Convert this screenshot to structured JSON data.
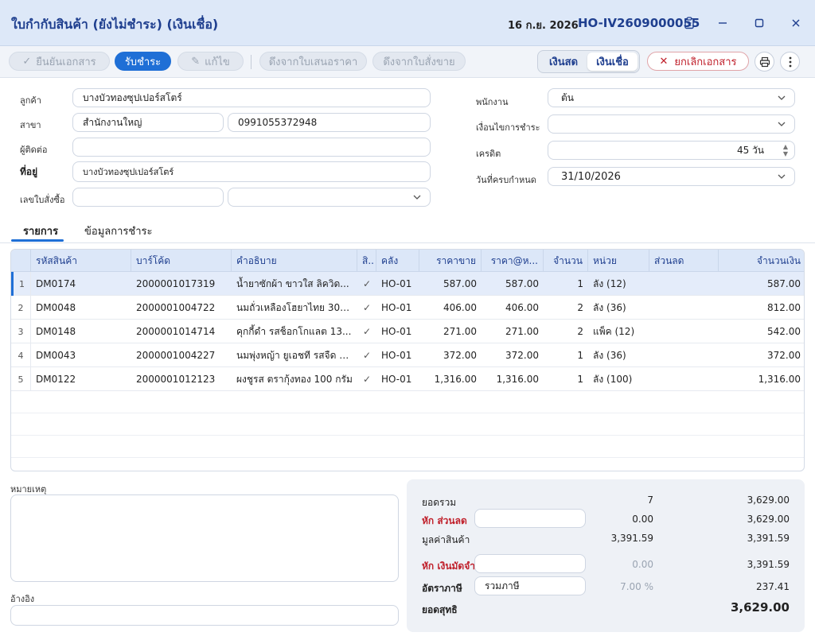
{
  "title": "ใบกำกับสินค้า (ยังไม่ชำระ) (เงินเชื่อ)",
  "date": "16 ก.ย. 2026",
  "doc_no": "HO-IV2609000055",
  "toolbar": {
    "confirm_label": "ยืนยันเอกสาร",
    "receive_payment_label": "รับชำระ",
    "edit_label": "แก้ไข",
    "pull_quotation_label": "ดึงจากใบเสนอราคา",
    "pull_order_label": "ดึงจากใบสั่งขาย",
    "cash_label": "เงินสด",
    "credit_label": "เงินเชื่อ",
    "cancel_label": "ยกเลิกเอกสาร"
  },
  "form": {
    "customer_label": "ลูกค้า",
    "customer_value": "บางบัวทองซุปเปอร์สโตร์",
    "branch_label": "สาขา",
    "branch_value": "สำนักงานใหญ่",
    "phone_value": "0991055372948",
    "contact_label": "ผู้ติดต่อ",
    "contact_value": "",
    "address_label": "ที่อยู่",
    "address_value": "บางบัวทองซุปเปอร์สโตร์",
    "po_label": "เลขใบสั่งซื้อ",
    "po_value": "",
    "po_select_value": "",
    "employee_label": "พนักงาน",
    "employee_value": "ต้น",
    "payment_terms_label": "เงื่อนไขการชำระ",
    "payment_terms_value": "",
    "credit_label": "เครดิต",
    "credit_value": "45 วัน",
    "due_date_label": "วันที่ครบกำหนด",
    "due_date_value": "31/10/2026"
  },
  "tabs": [
    {
      "label": "รายการ",
      "active": true
    },
    {
      "label": "ข้อมูลการชำระ",
      "active": false
    }
  ],
  "table": {
    "columns": [
      "รหัสสินค้า",
      "บาร์โค้ด",
      "คำอธิบาย",
      "สิ..",
      "คลัง",
      "ราคาขาย",
      "ราคา@ห...",
      "จำนวน",
      "หน่วย",
      "ส่วนลด",
      "จำนวนเงิน"
    ],
    "rows": [
      {
        "no": "1",
        "code": "DM0174",
        "barcode": "2000001017319",
        "desc": "น้ำยาซักผ้า ขาวใส ลิควิด...",
        "check": "✓",
        "wh": "HO-01",
        "price": "587.00",
        "unit_price": "587.00",
        "qty": "1",
        "unit": "ลัง (12)",
        "discount": "",
        "amount": "587.00"
      },
      {
        "no": "2",
        "code": "DM0048",
        "barcode": "2000001004722",
        "desc": "นมถั่วเหลืองโฮยาไทย 300...",
        "check": "✓",
        "wh": "HO-01",
        "price": "406.00",
        "unit_price": "406.00",
        "qty": "2",
        "unit": "ลัง (36)",
        "discount": "",
        "amount": "812.00"
      },
      {
        "no": "3",
        "code": "DM0148",
        "barcode": "2000001014714",
        "desc": "คุกกี้ดำ รสช็อกโกแลต 13...",
        "check": "✓",
        "wh": "HO-01",
        "price": "271.00",
        "unit_price": "271.00",
        "qty": "2",
        "unit": "แพ็ค (12)",
        "discount": "",
        "amount": "542.00"
      },
      {
        "no": "4",
        "code": "DM0043",
        "barcode": "2000001004227",
        "desc": "นมพุ่งหญ้า ยูเอชที รสจืด 2...",
        "check": "✓",
        "wh": "HO-01",
        "price": "372.00",
        "unit_price": "372.00",
        "qty": "1",
        "unit": "ลัง (36)",
        "discount": "",
        "amount": "372.00"
      },
      {
        "no": "5",
        "code": "DM0122",
        "barcode": "2000001012123",
        "desc": "ผงชูรส ตรากุ้งทอง 100 กรัม",
        "check": "✓",
        "wh": "HO-01",
        "price": "1,316.00",
        "unit_price": "1,316.00",
        "qty": "1",
        "unit": "ลัง (100)",
        "discount": "",
        "amount": "1,316.00"
      }
    ]
  },
  "notes_label": "หมายเหตุ",
  "notes_value": "",
  "reference_label": "อ้างอิง",
  "reference_value": "",
  "summary": {
    "total_label": "ยอดรวม",
    "total_qty": "7",
    "total_amount": "3,629.00",
    "discount_label": "หัก ส่วนลด",
    "discount_value": "0.00",
    "discount_after": "3,629.00",
    "goods_value_label": "มูลค่าสินค้า",
    "goods_value": "3,391.59",
    "goods_value_total": "3,391.59",
    "deposit_label": "หัก เงินมัดจำ",
    "deposit_value": "0.00",
    "deposit_after": "3,391.59",
    "tax_label": "อัตราภาษี",
    "tax_type": "รวมภาษี",
    "tax_rate": "7.00 %",
    "tax_amount": "237.41",
    "net_label": "ยอดสุทธิ",
    "net_amount": "3,629.00"
  }
}
